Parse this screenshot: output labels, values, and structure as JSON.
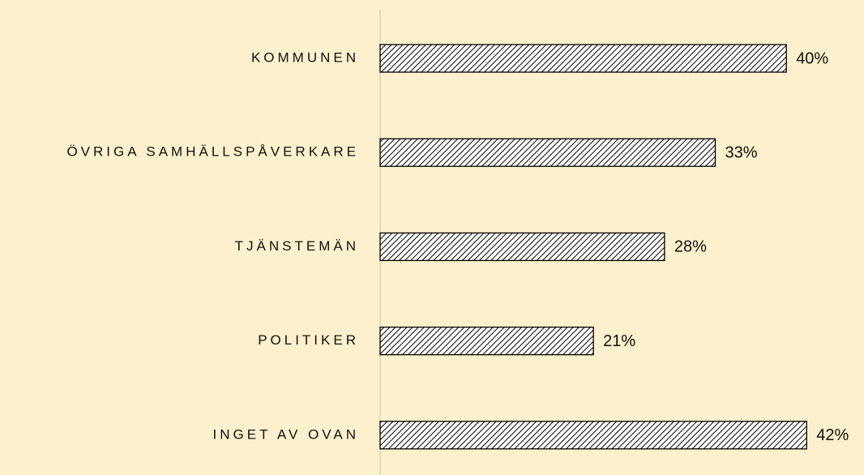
{
  "chart_data": {
    "type": "bar",
    "orientation": "horizontal",
    "categories": [
      "KOMMUNEN",
      "ÖVRIGA SAMHÄLLSPÅVERKARE",
      "TJÄNSTEMÄN",
      "POLITIKER",
      "INGET AV OVAN"
    ],
    "values": [
      40,
      33,
      28,
      21,
      42
    ],
    "value_labels": [
      "40%",
      "33%",
      "28%",
      "21%",
      "42%"
    ],
    "color": "#000000"
  }
}
